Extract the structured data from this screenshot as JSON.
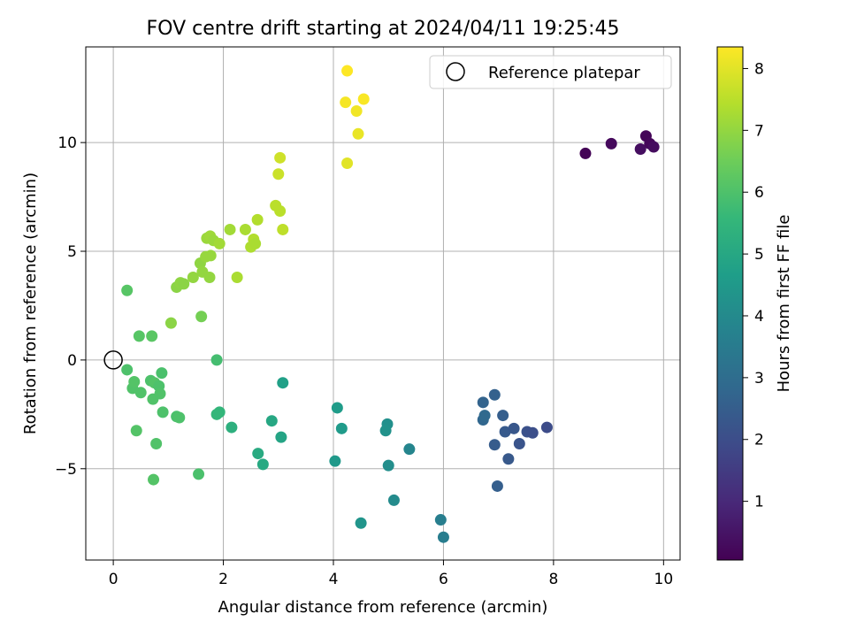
{
  "chart_data": {
    "type": "scatter",
    "title": "FOV centre drift starting at 2024/04/11 19:25:45",
    "xlabel": "Angular distance from reference (arcmin)",
    "ylabel": "Rotation from reference (arcmin)",
    "xlim": [
      -0.5,
      10.3
    ],
    "ylim": [
      -9.2,
      14.4
    ],
    "xticks": [
      0,
      2,
      4,
      6,
      8,
      10
    ],
    "yticks": [
      -5,
      0,
      5,
      10
    ],
    "grid": true,
    "legend": {
      "position": "top-right",
      "entries": [
        "Reference platepar"
      ]
    },
    "reference_point": {
      "x": 0,
      "y": 0,
      "label": "Reference platepar"
    },
    "colorbar": {
      "label": "Hours from first FF file",
      "colormap": "viridis",
      "range": [
        0.05,
        8.35
      ],
      "ticks": [
        1,
        2,
        3,
        4,
        5,
        6,
        7,
        8
      ]
    },
    "points": [
      {
        "x": 8.58,
        "y": 9.5,
        "c": 0.1
      },
      {
        "x": 9.05,
        "y": 9.95,
        "c": 0.25
      },
      {
        "x": 9.58,
        "y": 9.7,
        "c": 0.35
      },
      {
        "x": 9.68,
        "y": 10.3,
        "c": 0.15
      },
      {
        "x": 9.75,
        "y": 9.95,
        "c": 0.2
      },
      {
        "x": 9.82,
        "y": 9.8,
        "c": 0.3
      },
      {
        "x": 6.72,
        "y": -1.95,
        "c": 2.7
      },
      {
        "x": 6.72,
        "y": -2.75,
        "c": 2.8
      },
      {
        "x": 6.75,
        "y": -2.55,
        "c": 2.9
      },
      {
        "x": 6.93,
        "y": -1.6,
        "c": 2.6
      },
      {
        "x": 7.08,
        "y": -2.55,
        "c": 2.5
      },
      {
        "x": 7.12,
        "y": -3.3,
        "c": 2.4
      },
      {
        "x": 7.28,
        "y": -3.15,
        "c": 2.3
      },
      {
        "x": 7.18,
        "y": -4.55,
        "c": 2.35
      },
      {
        "x": 6.93,
        "y": -3.9,
        "c": 2.45
      },
      {
        "x": 7.38,
        "y": -3.85,
        "c": 2.2
      },
      {
        "x": 7.52,
        "y": -3.3,
        "c": 2.1
      },
      {
        "x": 7.62,
        "y": -3.35,
        "c": 2.05
      },
      {
        "x": 7.88,
        "y": -3.1,
        "c": 1.95
      },
      {
        "x": 6.98,
        "y": -5.8,
        "c": 2.55
      },
      {
        "x": 5.95,
        "y": -7.35,
        "c": 3.6
      },
      {
        "x": 6.0,
        "y": -8.15,
        "c": 3.55
      },
      {
        "x": 5.38,
        "y": -4.1,
        "c": 3.85
      },
      {
        "x": 5.1,
        "y": -6.45,
        "c": 4.05
      },
      {
        "x": 5.0,
        "y": -4.85,
        "c": 4.15
      },
      {
        "x": 4.98,
        "y": -2.95,
        "c": 4.2
      },
      {
        "x": 4.95,
        "y": -3.25,
        "c": 4.25
      },
      {
        "x": 4.5,
        "y": -7.5,
        "c": 4.35
      },
      {
        "x": 4.07,
        "y": -2.2,
        "c": 4.6
      },
      {
        "x": 4.15,
        "y": -3.15,
        "c": 4.55
      },
      {
        "x": 4.03,
        "y": -4.65,
        "c": 4.5
      },
      {
        "x": 3.08,
        "y": -1.05,
        "c": 4.75
      },
      {
        "x": 3.05,
        "y": -3.55,
        "c": 4.9
      },
      {
        "x": 2.88,
        "y": -2.8,
        "c": 5.0
      },
      {
        "x": 2.72,
        "y": -4.8,
        "c": 5.05
      },
      {
        "x": 2.63,
        "y": -4.3,
        "c": 5.1
      },
      {
        "x": 2.15,
        "y": -3.1,
        "c": 5.3
      },
      {
        "x": 1.93,
        "y": -2.4,
        "c": 5.5
      },
      {
        "x": 1.88,
        "y": -2.5,
        "c": 5.55
      },
      {
        "x": 1.88,
        "y": 0.0,
        "c": 5.85
      },
      {
        "x": 0.25,
        "y": -0.45,
        "c": 6.0
      },
      {
        "x": 0.35,
        "y": -1.3,
        "c": 6.05
      },
      {
        "x": 0.38,
        "y": -1.0,
        "c": 6.1
      },
      {
        "x": 0.5,
        "y": -1.5,
        "c": 6.05
      },
      {
        "x": 0.68,
        "y": -0.95,
        "c": 6.0
      },
      {
        "x": 0.75,
        "y": -1.05,
        "c": 6.1
      },
      {
        "x": 0.72,
        "y": -1.8,
        "c": 6.05
      },
      {
        "x": 0.83,
        "y": -1.2,
        "c": 6.0
      },
      {
        "x": 0.85,
        "y": -1.55,
        "c": 6.05
      },
      {
        "x": 0.88,
        "y": -0.6,
        "c": 5.95
      },
      {
        "x": 0.9,
        "y": -2.4,
        "c": 6.0
      },
      {
        "x": 1.15,
        "y": -2.6,
        "c": 5.95
      },
      {
        "x": 1.2,
        "y": -2.65,
        "c": 6.0
      },
      {
        "x": 0.42,
        "y": -3.25,
        "c": 6.1
      },
      {
        "x": 0.78,
        "y": -3.85,
        "c": 6.05
      },
      {
        "x": 0.73,
        "y": -5.5,
        "c": 6.1
      },
      {
        "x": 1.55,
        "y": -5.25,
        "c": 5.95
      },
      {
        "x": 0.25,
        "y": 3.2,
        "c": 6.15
      },
      {
        "x": 0.47,
        "y": 1.1,
        "c": 6.15
      },
      {
        "x": 0.7,
        "y": 1.1,
        "c": 6.2
      },
      {
        "x": 1.6,
        "y": 2.0,
        "c": 6.6
      },
      {
        "x": 1.05,
        "y": 1.7,
        "c": 6.9
      },
      {
        "x": 1.15,
        "y": 3.35,
        "c": 6.9
      },
      {
        "x": 1.22,
        "y": 3.55,
        "c": 6.95
      },
      {
        "x": 1.28,
        "y": 3.5,
        "c": 6.9
      },
      {
        "x": 1.45,
        "y": 3.8,
        "c": 7.0
      },
      {
        "x": 1.58,
        "y": 4.45,
        "c": 6.95
      },
      {
        "x": 1.62,
        "y": 4.05,
        "c": 7.0
      },
      {
        "x": 1.68,
        "y": 4.75,
        "c": 7.05
      },
      {
        "x": 1.75,
        "y": 3.8,
        "c": 7.0
      },
      {
        "x": 1.77,
        "y": 4.8,
        "c": 7.05
      },
      {
        "x": 1.7,
        "y": 5.6,
        "c": 7.1
      },
      {
        "x": 1.76,
        "y": 5.7,
        "c": 7.15
      },
      {
        "x": 1.82,
        "y": 5.5,
        "c": 7.1
      },
      {
        "x": 1.93,
        "y": 5.35,
        "c": 7.2
      },
      {
        "x": 2.12,
        "y": 6.0,
        "c": 7.2
      },
      {
        "x": 2.25,
        "y": 3.8,
        "c": 7.3
      },
      {
        "x": 2.4,
        "y": 6.0,
        "c": 7.3
      },
      {
        "x": 2.5,
        "y": 5.2,
        "c": 7.35
      },
      {
        "x": 2.55,
        "y": 5.55,
        "c": 7.4
      },
      {
        "x": 2.58,
        "y": 5.35,
        "c": 7.3
      },
      {
        "x": 2.62,
        "y": 6.45,
        "c": 7.4
      },
      {
        "x": 2.95,
        "y": 7.1,
        "c": 7.5
      },
      {
        "x": 3.03,
        "y": 6.85,
        "c": 7.5
      },
      {
        "x": 3.08,
        "y": 6.0,
        "c": 7.55
      },
      {
        "x": 3.0,
        "y": 8.55,
        "c": 7.7
      },
      {
        "x": 3.03,
        "y": 9.3,
        "c": 7.75
      },
      {
        "x": 4.25,
        "y": 9.05,
        "c": 8.0
      },
      {
        "x": 4.45,
        "y": 10.4,
        "c": 8.1
      },
      {
        "x": 4.22,
        "y": 11.85,
        "c": 8.25
      },
      {
        "x": 4.42,
        "y": 11.45,
        "c": 8.2
      },
      {
        "x": 4.55,
        "y": 12.0,
        "c": 8.3
      },
      {
        "x": 4.25,
        "y": 13.3,
        "c": 8.35
      }
    ]
  }
}
